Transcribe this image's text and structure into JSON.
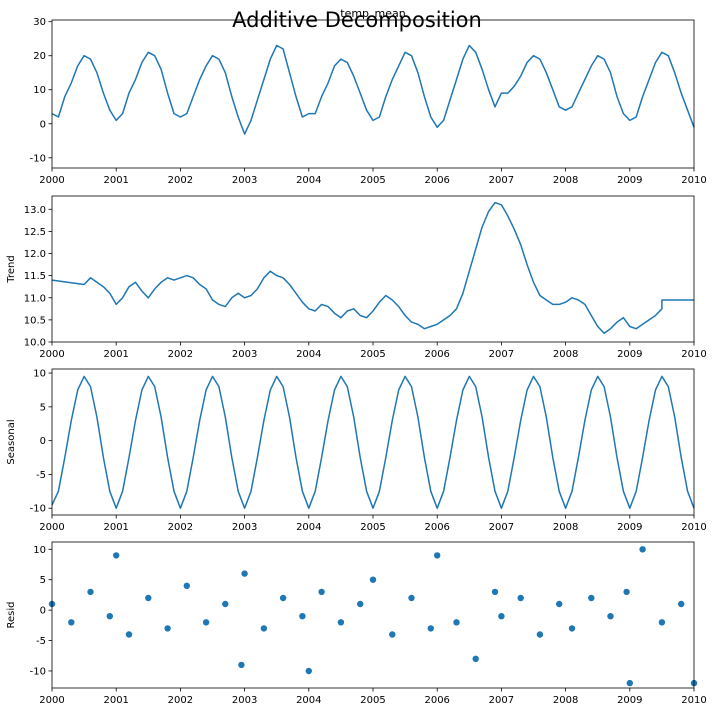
{
  "figure": {
    "suptitle": "Additive Decomposition"
  },
  "chart_data": [
    {
      "type": "line",
      "title": "temp_mean",
      "xlabel": "",
      "ylabel": "",
      "x_range": [
        "2000",
        "2010"
      ],
      "x_ticks": [
        "2000",
        "2001",
        "2002",
        "2003",
        "2004",
        "2005",
        "2006",
        "2007",
        "2008",
        "2009",
        "2010"
      ],
      "ylim": [
        -13,
        30.5
      ],
      "y_ticks": [
        "-10",
        "0",
        "10",
        "20",
        "30"
      ],
      "y_tick_values": [
        -10,
        0,
        10,
        20,
        30
      ],
      "color": "#1f77b4",
      "series": [
        {
          "x_years": [
            2000.0,
            2000.1,
            2000.2,
            2000.3,
            2000.4,
            2000.5,
            2000.6,
            2000.7,
            2000.8,
            2000.9,
            2001.0,
            2001.1,
            2001.2,
            2001.3,
            2001.4,
            2001.5,
            2001.6,
            2001.7,
            2001.8,
            2001.9,
            2002.0,
            2002.1,
            2002.2,
            2002.3,
            2002.4,
            2002.5,
            2002.6,
            2002.7,
            2002.8,
            2002.9,
            2003.0,
            2003.1,
            2003.2,
            2003.3,
            2003.4,
            2003.5,
            2003.6,
            2003.7,
            2003.8,
            2003.9,
            2004.0,
            2004.1,
            2004.2,
            2004.3,
            2004.4,
            2004.5,
            2004.6,
            2004.7,
            2004.8,
            2004.9,
            2005.0,
            2005.1,
            2005.2,
            2005.3,
            2005.4,
            2005.5,
            2005.6,
            2005.7,
            2005.8,
            2005.9,
            2006.0,
            2006.1,
            2006.2,
            2006.3,
            2006.4,
            2006.5,
            2006.6,
            2006.7,
            2006.8,
            2006.9,
            2007.0,
            2007.1,
            2007.2,
            2007.3,
            2007.4,
            2007.5,
            2007.6,
            2007.7,
            2007.8,
            2007.9,
            2008.0,
            2008.1,
            2008.2,
            2008.3,
            2008.4,
            2008.5,
            2008.6,
            2008.7,
            2008.8,
            2008.9,
            2009.0,
            2009.1,
            2009.2,
            2009.3,
            2009.4,
            2009.5,
            2009.6,
            2009.7,
            2009.8,
            2009.9,
            2010.0
          ],
          "values": [
            3,
            2,
            8,
            12,
            17,
            20,
            19,
            15,
            9,
            4,
            1,
            3,
            9,
            13,
            18,
            21,
            20,
            16,
            9,
            3,
            2,
            3,
            8,
            13,
            17,
            20,
            19,
            15,
            8,
            2,
            -3,
            1,
            7,
            13,
            19,
            23,
            22,
            15,
            8,
            2,
            3,
            3,
            8,
            12,
            17,
            19,
            18,
            14,
            9,
            4,
            1,
            2,
            8,
            13,
            17,
            21,
            20,
            15,
            8,
            2,
            -1,
            1,
            7,
            13,
            19,
            23,
            21,
            16,
            10,
            5,
            9,
            9,
            11,
            14,
            18,
            20,
            19,
            15,
            10,
            5,
            4,
            5,
            9,
            13,
            17,
            20,
            19,
            15,
            8,
            3,
            1,
            2,
            8,
            13,
            18,
            21,
            20,
            15,
            9,
            4,
            -1
          ]
        }
      ]
    },
    {
      "type": "line",
      "title": "",
      "xlabel": "",
      "ylabel": "Trend",
      "x_range": [
        "2000",
        "2010"
      ],
      "x_ticks": [
        "2000",
        "2001",
        "2002",
        "2003",
        "2004",
        "2005",
        "2006",
        "2007",
        "2008",
        "2009",
        "2010"
      ],
      "ylim": [
        10.0,
        13.3
      ],
      "y_ticks": [
        "10.0",
        "10.5",
        "11.0",
        "11.5",
        "12.0",
        "12.5",
        "13.0"
      ],
      "y_tick_values": [
        10.0,
        10.5,
        11.0,
        11.5,
        12.0,
        12.5,
        13.0
      ],
      "color": "#1f77b4",
      "series": [
        {
          "x_years": [
            2000.0,
            2000.5,
            2000.6,
            2000.7,
            2000.8,
            2000.9,
            2001.0,
            2001.1,
            2001.2,
            2001.3,
            2001.4,
            2001.5,
            2001.6,
            2001.7,
            2001.8,
            2001.9,
            2002.0,
            2002.1,
            2002.2,
            2002.3,
            2002.4,
            2002.5,
            2002.6,
            2002.7,
            2002.8,
            2002.9,
            2003.0,
            2003.1,
            2003.2,
            2003.3,
            2003.4,
            2003.5,
            2003.6,
            2003.7,
            2003.8,
            2003.9,
            2004.0,
            2004.1,
            2004.2,
            2004.3,
            2004.4,
            2004.5,
            2004.6,
            2004.7,
            2004.8,
            2004.9,
            2005.0,
            2005.1,
            2005.2,
            2005.3,
            2005.4,
            2005.5,
            2005.6,
            2005.7,
            2005.8,
            2005.9,
            2006.0,
            2006.1,
            2006.2,
            2006.3,
            2006.4,
            2006.5,
            2006.6,
            2006.7,
            2006.8,
            2006.9,
            2007.0,
            2007.1,
            2007.2,
            2007.3,
            2007.4,
            2007.5,
            2007.6,
            2007.7,
            2007.8,
            2007.9,
            2008.0,
            2008.1,
            2008.2,
            2008.3,
            2008.4,
            2008.5,
            2008.6,
            2008.7,
            2008.8,
            2008.9,
            2009.0,
            2009.1,
            2009.2,
            2009.3,
            2009.4,
            2009.5,
            2009.5,
            2010.0
          ],
          "values": [
            11.4,
            11.3,
            11.45,
            11.35,
            11.25,
            11.1,
            10.85,
            11.0,
            11.25,
            11.35,
            11.15,
            11.0,
            11.2,
            11.35,
            11.45,
            11.4,
            11.45,
            11.5,
            11.45,
            11.3,
            11.2,
            10.95,
            10.85,
            10.8,
            11.0,
            11.1,
            11.0,
            11.05,
            11.2,
            11.45,
            11.6,
            11.5,
            11.45,
            11.3,
            11.1,
            10.9,
            10.75,
            10.7,
            10.85,
            10.8,
            10.65,
            10.55,
            10.7,
            10.75,
            10.6,
            10.55,
            10.7,
            10.9,
            11.05,
            10.95,
            10.8,
            10.6,
            10.45,
            10.4,
            10.3,
            10.35,
            10.4,
            10.5,
            10.6,
            10.75,
            11.1,
            11.6,
            12.1,
            12.6,
            12.95,
            13.15,
            13.1,
            12.85,
            12.55,
            12.2,
            11.75,
            11.35,
            11.05,
            10.95,
            10.85,
            10.85,
            10.9,
            11.0,
            10.95,
            10.85,
            10.6,
            10.35,
            10.2,
            10.3,
            10.45,
            10.55,
            10.35,
            10.3,
            10.4,
            10.5,
            10.6,
            10.75,
            10.95,
            10.95
          ]
        }
      ]
    },
    {
      "type": "line",
      "title": "",
      "xlabel": "",
      "ylabel": "Seasonal",
      "x_range": [
        "2000",
        "2010"
      ],
      "x_ticks": [
        "2000",
        "2001",
        "2002",
        "2003",
        "2004",
        "2005",
        "2006",
        "2007",
        "2008",
        "2009",
        "2010"
      ],
      "ylim": [
        -11,
        10.6
      ],
      "y_ticks": [
        "-10",
        "-5",
        "0",
        "5",
        "10"
      ],
      "y_tick_values": [
        -10,
        -5,
        0,
        5,
        10
      ],
      "color": "#1f77b4",
      "series": [
        {
          "x_years": [
            2000.0,
            2000.1,
            2000.2,
            2000.3,
            2000.4,
            2000.5,
            2000.6,
            2000.7,
            2000.8,
            2000.9,
            2001.0
          ],
          "values": [
            -9.5,
            -7.5,
            -2.5,
            3.0,
            7.5,
            9.5,
            8.0,
            3.5,
            -2.5,
            -7.5,
            -10.0
          ],
          "repeats_yearly": true
        }
      ]
    },
    {
      "type": "scatter",
      "title": "",
      "xlabel": "",
      "ylabel": "Resid",
      "x_range": [
        "2000",
        "2010"
      ],
      "x_ticks": [
        "2000",
        "2001",
        "2002",
        "2003",
        "2004",
        "2005",
        "2006",
        "2007",
        "2008",
        "2009",
        "2010"
      ],
      "ylim": [
        -12.8,
        11.2
      ],
      "y_ticks": [
        "-10",
        "-5",
        "0",
        "5",
        "10"
      ],
      "y_tick_values": [
        -10,
        -5,
        0,
        5,
        10
      ],
      "color": "#1f77b4",
      "series": [
        {
          "x_years": [
            2000.0,
            2000.3,
            2000.6,
            2000.9,
            2001.0,
            2001.2,
            2001.5,
            2001.8,
            2002.1,
            2002.4,
            2002.7,
            2002.95,
            2003.0,
            2003.3,
            2003.6,
            2003.9,
            2004.0,
            2004.2,
            2004.5,
            2004.8,
            2005.0,
            2005.3,
            2005.6,
            2005.9,
            2006.0,
            2006.3,
            2006.6,
            2006.9,
            2007.0,
            2007.3,
            2007.6,
            2007.9,
            2008.1,
            2008.4,
            2008.7,
            2008.95,
            2009.0,
            2009.2,
            2009.5,
            2009.8,
            2010.0
          ],
          "values": [
            1,
            -2,
            3,
            -1,
            9,
            -4,
            2,
            -3,
            4,
            -2,
            1,
            -9,
            6,
            -3,
            2,
            -1,
            -10,
            3,
            -2,
            1,
            5,
            -4,
            2,
            -3,
            9,
            -2,
            -8,
            3,
            -1,
            2,
            -4,
            1,
            -3,
            2,
            -1,
            3,
            -12,
            10,
            -2,
            1,
            -12
          ]
        }
      ]
    }
  ]
}
